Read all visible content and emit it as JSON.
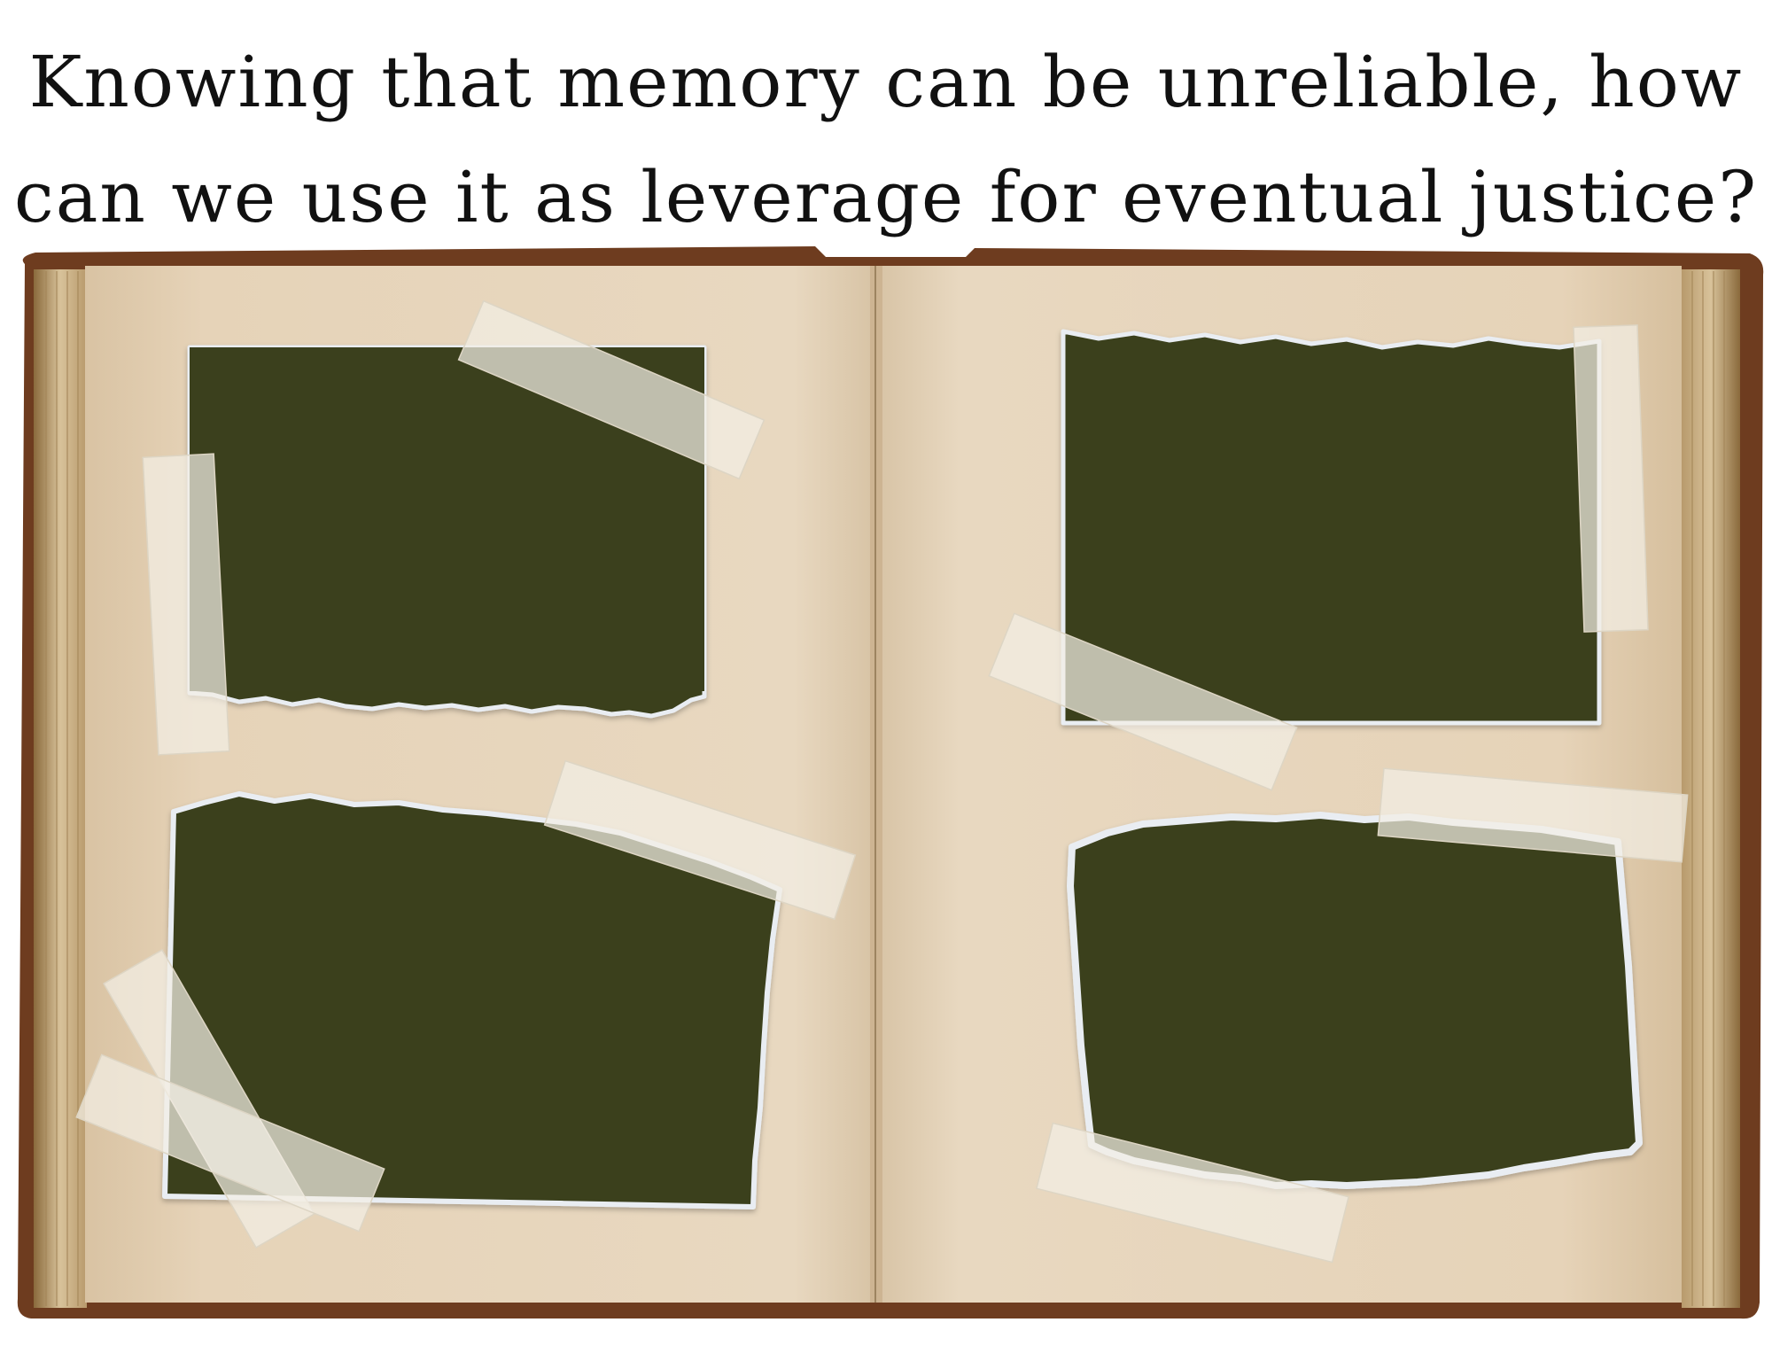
{
  "heading": {
    "line1": "Knowing that memory can be unreliable, how",
    "line2": "can we use it as leverage for eventual justice?"
  },
  "colors": {
    "page": "#e6d3b8",
    "cover": "#6e3c1f",
    "photo": "#3b401d",
    "tape": "#f3efe4",
    "paper_edge": "#e9edf2"
  },
  "album": {
    "photo_count": 4
  }
}
